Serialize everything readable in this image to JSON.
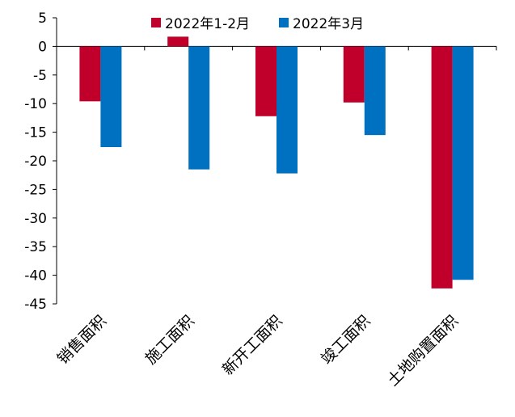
{
  "chart_data": {
    "type": "bar",
    "categories": [
      "销售面积",
      "施工面积",
      "新开工面积",
      "竣工面积",
      "土地购置面积"
    ],
    "series": [
      {
        "name": "2022年1-2月",
        "color": "#c0002a",
        "values": [
          -9.6,
          1.7,
          -12.2,
          -9.8,
          -42.3
        ]
      },
      {
        "name": "2022年3月",
        "color": "#0070c0",
        "values": [
          -17.6,
          -21.5,
          -22.2,
          -15.5,
          -40.8
        ]
      }
    ],
    "ylim": [
      -45,
      5
    ],
    "yticks": [
      5,
      0,
      -5,
      -10,
      -15,
      -20,
      -25,
      -30,
      -35,
      -40,
      -45
    ],
    "xlabel": "",
    "ylabel": "",
    "legend_position": "top",
    "grid": false
  }
}
